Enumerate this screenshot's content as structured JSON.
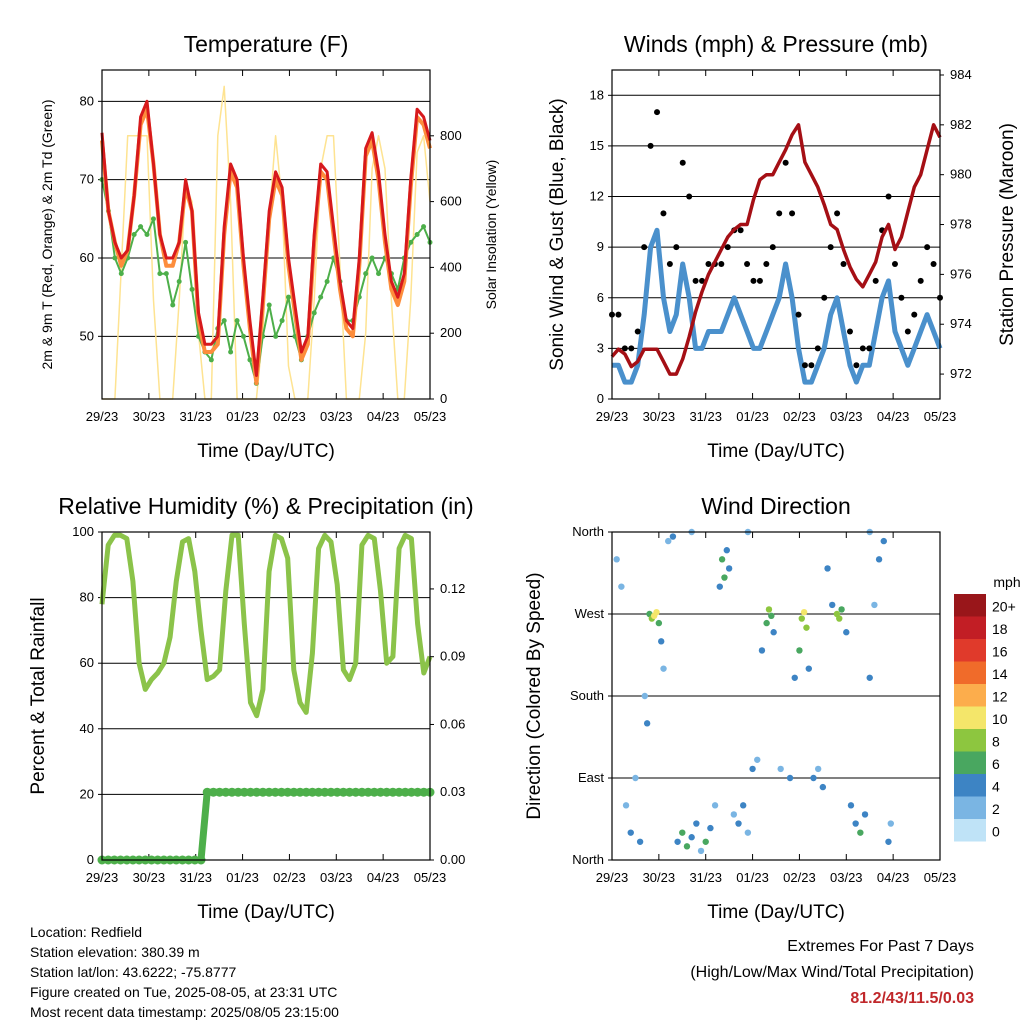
{
  "x_tick_labels": [
    "29/23",
    "30/23",
    "31/23",
    "01/23",
    "02/23",
    "03/23",
    "04/23",
    "05/23"
  ],
  "chart_data": [
    {
      "type": "line",
      "title": "Temperature (F)",
      "xlabel": "Time (Day/UTC)",
      "ylabel": "2m & 9m T (Red, Orange) & 2m Td (Green)",
      "ylabel_right": "Solar Insolation (Yellow)",
      "ylim": [
        42,
        84
      ],
      "yticks": [
        50,
        60,
        70,
        80
      ],
      "ylim_right": [
        0,
        1000
      ],
      "yticks_right": [
        0,
        200,
        400,
        600,
        800
      ],
      "series": [
        {
          "name": "2m T",
          "color": "#d7191c",
          "values": [
            76,
            66,
            62,
            60,
            61,
            68,
            78,
            80,
            72,
            63,
            60,
            60,
            62,
            70,
            66,
            53,
            49,
            49,
            50,
            64,
            72,
            70,
            60,
            52,
            45,
            55,
            66,
            71,
            69,
            60,
            54,
            48,
            50,
            63,
            72,
            71,
            64,
            57,
            52,
            51,
            60,
            74,
            76,
            71,
            63,
            57,
            55,
            58,
            70,
            79,
            78,
            75
          ]
        },
        {
          "name": "9m T",
          "color": "#fd8d3c",
          "values": [
            75,
            66,
            62,
            59,
            61,
            68,
            77,
            79,
            72,
            63,
            59,
            59,
            62,
            69,
            66,
            52,
            48,
            48,
            49,
            63,
            71,
            69,
            59,
            51,
            44,
            54,
            65,
            70,
            68,
            59,
            53,
            47,
            49,
            62,
            71,
            70,
            63,
            56,
            51,
            50,
            59,
            73,
            75,
            70,
            62,
            56,
            54,
            57,
            69,
            78,
            77,
            74
          ]
        },
        {
          "name": "2m Td",
          "color": "#4daf4a",
          "values": [
            70,
            66,
            60,
            58,
            60,
            63,
            64,
            63,
            65,
            58,
            58,
            54,
            57,
            62,
            56,
            50,
            48,
            47,
            51,
            52,
            48,
            52,
            50,
            47,
            44,
            50,
            54,
            50,
            52,
            55,
            50,
            47,
            50,
            53,
            55,
            57,
            60,
            57,
            52,
            52,
            55,
            58,
            60,
            58,
            60,
            58,
            56,
            60,
            62,
            63,
            64,
            62
          ]
        },
        {
          "name": "Solar Insolation",
          "color": "#fee391",
          "axis": "right",
          "values": [
            0,
            0,
            0,
            400,
            800,
            800,
            800,
            800,
            300,
            0,
            0,
            0,
            300,
            650,
            600,
            200,
            0,
            0,
            800,
            950,
            600,
            0,
            0,
            0,
            0,
            200,
            550,
            800,
            600,
            100,
            0,
            0,
            0,
            300,
            700,
            800,
            800,
            400,
            0,
            0,
            0,
            200,
            700,
            800,
            700,
            300,
            0,
            0,
            300,
            750,
            800,
            600
          ]
        }
      ]
    },
    {
      "type": "line",
      "title": "Winds (mph) & Pressure (mb)",
      "xlabel": "Time (Day/UTC)",
      "ylabel": "Sonic Wind & Gust (Blue, Black)",
      "ylabel_right": "Station Pressure (Maroon)",
      "ylim": [
        0,
        19.5
      ],
      "yticks": [
        0,
        3,
        6,
        9,
        12,
        15,
        18
      ],
      "ylim_right": [
        971,
        984.2
      ],
      "yticks_right": [
        972,
        974,
        976,
        978,
        980,
        982,
        984
      ],
      "series": [
        {
          "name": "Sonic Wind",
          "color": "#4a90cc",
          "values": [
            2,
            2,
            1,
            1,
            2,
            5,
            9,
            10,
            6,
            4,
            5,
            8,
            6,
            3,
            3,
            4,
            4,
            4,
            5,
            6,
            5,
            4,
            3,
            3,
            4,
            5,
            6,
            8,
            6,
            3,
            1,
            1,
            2,
            3,
            5,
            6,
            4,
            2,
            1,
            2,
            2,
            4,
            6,
            7,
            4,
            3,
            2,
            3,
            4,
            5,
            4,
            3
          ]
        },
        {
          "name": "Gust",
          "color": "#000000",
          "values": [
            5,
            5,
            3,
            3,
            4,
            9,
            15,
            17,
            11,
            8,
            9,
            14,
            12,
            7,
            7,
            8,
            8,
            8,
            9,
            10,
            10,
            8,
            7,
            7,
            8,
            9,
            11,
            14,
            11,
            5,
            2,
            2,
            3,
            6,
            9,
            11,
            8,
            4,
            2,
            3,
            3,
            7,
            10,
            12,
            8,
            6,
            4,
            5,
            7,
            9,
            8,
            6
          ]
        },
        {
          "name": "Station Pressure",
          "color": "#a50f15",
          "axis": "right",
          "values": [
            972.7,
            973.0,
            972.8,
            972.3,
            972.5,
            973.0,
            973.0,
            973.0,
            972.5,
            972.0,
            972.0,
            972.6,
            973.5,
            974.5,
            975.3,
            976.0,
            976.5,
            977.0,
            977.5,
            977.8,
            978.0,
            978.0,
            979.0,
            979.8,
            980.0,
            980.0,
            980.5,
            981.0,
            981.6,
            982.0,
            980.5,
            980.0,
            979.5,
            978.8,
            978.0,
            977.8,
            977.0,
            976.3,
            975.8,
            975.5,
            976.0,
            976.5,
            977.5,
            978.0,
            977.0,
            977.5,
            978.5,
            979.5,
            980.0,
            981.0,
            982.0,
            981.5
          ]
        }
      ]
    },
    {
      "type": "line",
      "title": "Relative Humidity (%) & Precipitation (in)",
      "xlabel": "Time (Day/UTC)",
      "ylabel": "Percent & Total Rainfall",
      "ylim": [
        0,
        100
      ],
      "yticks": [
        0,
        20,
        40,
        60,
        80,
        100
      ],
      "ylim_right": [
        0,
        0.1452
      ],
      "yticks_right": [
        0.0,
        0.03,
        0.06,
        0.09,
        0.12
      ],
      "yticks_right_labels": [
        "0.00",
        "0.03",
        "0.06",
        "0.09",
        "0.12"
      ],
      "series": [
        {
          "name": "Relative Humidity",
          "color": "#8bc34a",
          "values": [
            78,
            96,
            99,
            99,
            98,
            85,
            60,
            52,
            55,
            57,
            60,
            68,
            85,
            97,
            98,
            88,
            70,
            55,
            56,
            58,
            82,
            99,
            99,
            72,
            48,
            44,
            52,
            88,
            99,
            98,
            92,
            58,
            48,
            45,
            63,
            95,
            99,
            97,
            84,
            58,
            55,
            60,
            96,
            99,
            98,
            82,
            60,
            62,
            95,
            99,
            98,
            72,
            57,
            62
          ]
        },
        {
          "name": "Total Rainfall",
          "color": "#4daf4a",
          "axis": "right",
          "values": [
            0.0,
            0.0,
            0.0,
            0.0,
            0.0,
            0.0,
            0.0,
            0.0,
            0.0,
            0.0,
            0.0,
            0.0,
            0.0,
            0.0,
            0.0,
            0.0,
            0.0,
            0.03,
            0.03,
            0.03,
            0.03,
            0.03,
            0.03,
            0.03,
            0.03,
            0.03,
            0.03,
            0.03,
            0.03,
            0.03,
            0.03,
            0.03,
            0.03,
            0.03,
            0.03,
            0.03,
            0.03,
            0.03,
            0.03,
            0.03,
            0.03,
            0.03,
            0.03,
            0.03,
            0.03,
            0.03,
            0.03,
            0.03,
            0.03,
            0.03,
            0.03,
            0.03,
            0.03,
            0.03
          ]
        }
      ]
    },
    {
      "type": "scatter",
      "title": "Wind Direction",
      "xlabel": "Time (Day/UTC)",
      "ylabel": "Direction (Colored By Speed)",
      "ylim": [
        0,
        360
      ],
      "ytick_values": [
        0,
        90,
        180,
        270,
        360
      ],
      "ytick_labels": [
        "North",
        "East",
        "South",
        "West",
        "North"
      ],
      "colorbar": {
        "title": "mph",
        "labels": [
          "20+",
          "18",
          "16",
          "14",
          "12",
          "10",
          "8",
          "6",
          "4",
          "2",
          "0"
        ],
        "colors": [
          "#99161a",
          "#c21e25",
          "#e03a2b",
          "#f06b2a",
          "#fcad4c",
          "#f4e66a",
          "#8dc63f",
          "#49a760",
          "#3d84c4",
          "#7ab5e3",
          "#bfe3f7"
        ]
      },
      "points": [
        {
          "t": 0.1,
          "d": 330,
          "s": 2
        },
        {
          "t": 0.2,
          "d": 300,
          "s": 1
        },
        {
          "t": 0.3,
          "d": 60,
          "s": 2
        },
        {
          "t": 0.4,
          "d": 30,
          "s": 3
        },
        {
          "t": 0.5,
          "d": 90,
          "s": 2
        },
        {
          "t": 0.6,
          "d": 20,
          "s": 3
        },
        {
          "t": 0.7,
          "d": 180,
          "s": 2
        },
        {
          "t": 0.75,
          "d": 150,
          "s": 3
        },
        {
          "t": 0.8,
          "d": 270,
          "s": 5
        },
        {
          "t": 0.85,
          "d": 265,
          "s": 8
        },
        {
          "t": 0.9,
          "d": 268,
          "s": 10
        },
        {
          "t": 0.95,
          "d": 272,
          "s": 9
        },
        {
          "t": 1.0,
          "d": 260,
          "s": 6
        },
        {
          "t": 1.05,
          "d": 240,
          "s": 4
        },
        {
          "t": 1.1,
          "d": 210,
          "s": 2
        },
        {
          "t": 1.2,
          "d": 350,
          "s": 2
        },
        {
          "t": 1.3,
          "d": 355,
          "s": 3
        },
        {
          "t": 1.4,
          "d": 20,
          "s": 4
        },
        {
          "t": 1.5,
          "d": 30,
          "s": 5
        },
        {
          "t": 1.6,
          "d": 15,
          "s": 6
        },
        {
          "t": 1.7,
          "d": 25,
          "s": 4
        },
        {
          "t": 1.8,
          "d": 40,
          "s": 3
        },
        {
          "t": 1.9,
          "d": 10,
          "s": 2
        },
        {
          "t": 2.0,
          "d": 20,
          "s": 5
        },
        {
          "t": 2.1,
          "d": 35,
          "s": 4
        },
        {
          "t": 2.2,
          "d": 60,
          "s": 2
        },
        {
          "t": 2.3,
          "d": 300,
          "s": 3
        },
        {
          "t": 2.35,
          "d": 330,
          "s": 5
        },
        {
          "t": 2.4,
          "d": 310,
          "s": 6
        },
        {
          "t": 2.45,
          "d": 340,
          "s": 4
        },
        {
          "t": 2.5,
          "d": 320,
          "s": 3
        },
        {
          "t": 2.6,
          "d": 50,
          "s": 2
        },
        {
          "t": 2.7,
          "d": 40,
          "s": 3
        },
        {
          "t": 2.8,
          "d": 60,
          "s": 4
        },
        {
          "t": 2.9,
          "d": 30,
          "s": 2
        },
        {
          "t": 3.0,
          "d": 100,
          "s": 3
        },
        {
          "t": 3.1,
          "d": 110,
          "s": 2
        },
        {
          "t": 3.2,
          "d": 230,
          "s": 4
        },
        {
          "t": 3.3,
          "d": 260,
          "s": 6
        },
        {
          "t": 3.35,
          "d": 275,
          "s": 7
        },
        {
          "t": 3.4,
          "d": 268,
          "s": 5
        },
        {
          "t": 3.45,
          "d": 250,
          "s": 4
        },
        {
          "t": 3.6,
          "d": 100,
          "s": 2
        },
        {
          "t": 3.8,
          "d": 90,
          "s": 3
        },
        {
          "t": 3.9,
          "d": 200,
          "s": 3
        },
        {
          "t": 4.0,
          "d": 230,
          "s": 5
        },
        {
          "t": 4.05,
          "d": 265,
          "s": 8
        },
        {
          "t": 4.1,
          "d": 272,
          "s": 9
        },
        {
          "t": 4.15,
          "d": 255,
          "s": 7
        },
        {
          "t": 4.2,
          "d": 210,
          "s": 4
        },
        {
          "t": 4.3,
          "d": 90,
          "s": 3
        },
        {
          "t": 4.4,
          "d": 100,
          "s": 2
        },
        {
          "t": 4.5,
          "d": 80,
          "s": 3
        },
        {
          "t": 4.6,
          "d": 320,
          "s": 3
        },
        {
          "t": 4.7,
          "d": 280,
          "s": 4
        },
        {
          "t": 4.8,
          "d": 270,
          "s": 7
        },
        {
          "t": 4.85,
          "d": 265,
          "s": 8
        },
        {
          "t": 4.9,
          "d": 275,
          "s": 6
        },
        {
          "t": 5.0,
          "d": 250,
          "s": 4
        },
        {
          "t": 5.1,
          "d": 60,
          "s": 3
        },
        {
          "t": 5.2,
          "d": 40,
          "s": 4
        },
        {
          "t": 5.3,
          "d": 30,
          "s": 5
        },
        {
          "t": 5.4,
          "d": 50,
          "s": 3
        },
        {
          "t": 5.5,
          "d": 200,
          "s": 3
        },
        {
          "t": 5.6,
          "d": 280,
          "s": 2
        },
        {
          "t": 5.7,
          "d": 330,
          "s": 3
        },
        {
          "t": 5.8,
          "d": 350,
          "s": 4
        },
        {
          "t": 5.9,
          "d": 20,
          "s": 3
        },
        {
          "t": 5.95,
          "d": 40,
          "s": 2
        },
        {
          "t": 5.5,
          "d": 360,
          "s": 1
        },
        {
          "t": 2.9,
          "d": 360,
          "s": 1
        },
        {
          "t": 1.7,
          "d": 360,
          "s": 1
        }
      ]
    }
  ],
  "info": {
    "location": "Location: Redfield",
    "elevation": "Station elevation: 380.39 m",
    "latlon": "Station lat/lon: 43.6222; -75.8777",
    "created": "Figure created on Tue, 2025-08-05, at 23:31 UTC",
    "recent": "Most recent data timestamp: 2025/08/05 23:15:00"
  },
  "extremes": {
    "title": "Extremes For Past 7 Days",
    "subtitle": "(High/Low/Max Wind/Total Precipitation)",
    "values": "81.2/43/11.5/0.03"
  }
}
